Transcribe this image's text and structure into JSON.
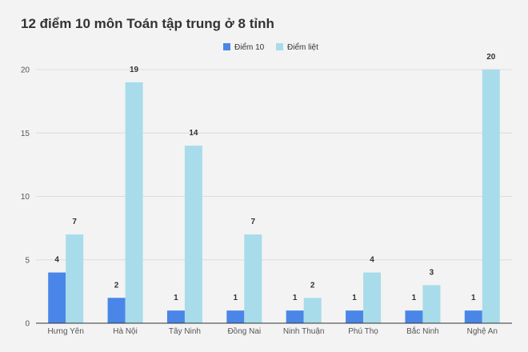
{
  "chart_data": {
    "type": "bar",
    "title": "12 điểm 10 môn Toán tập trung ở 8 tỉnh",
    "categories": [
      "Hưng Yên",
      "Hà Nội",
      "Tây Ninh",
      "Đồng Nai",
      "Ninh Thuận",
      "Phú Thọ",
      "Bắc Ninh",
      "Nghệ An"
    ],
    "series": [
      {
        "name": "Điểm 10",
        "values": [
          4,
          2,
          1,
          1,
          1,
          1,
          1,
          1
        ],
        "color": "#4a86e8"
      },
      {
        "name": "Điểm liệt",
        "values": [
          7,
          19,
          14,
          7,
          2,
          4,
          3,
          20
        ],
        "color": "#a8dcea"
      }
    ],
    "ylim": [
      0,
      20
    ],
    "yticks": [
      0,
      5,
      10,
      15,
      20
    ],
    "grid": true,
    "data_labels": true,
    "legend_position": "top-center",
    "colors": {
      "background": "#f3f3f3",
      "gridline": "#dcdcdc",
      "axis": "#333333",
      "text": "#555555"
    }
  }
}
